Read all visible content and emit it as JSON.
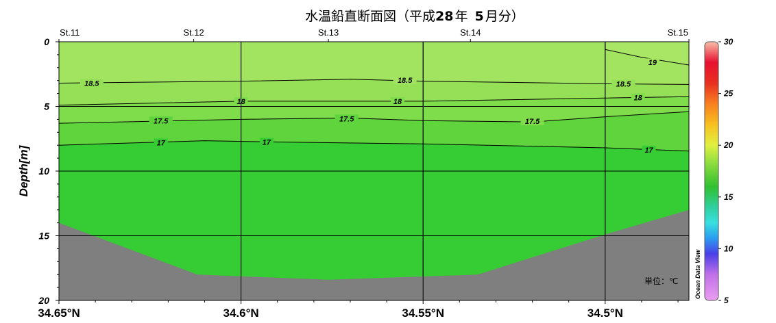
{
  "title": {
    "prefix": "水温鉛直断面図（平成",
    "year": "28",
    "mid": "年",
    "month": "5",
    "suffix": "月分）"
  },
  "unit_label": "単位：℃",
  "watermark": "Ocean Data View",
  "chart_data": {
    "type": "contour-section",
    "ylabel": "Depth[m]",
    "x_ticks": [
      {
        "value": 34.65,
        "label": "34.65°N"
      },
      {
        "value": 34.6,
        "label": "34.6°N"
      },
      {
        "value": 34.55,
        "label": "34.55°N"
      },
      {
        "value": 34.5,
        "label": "34.5°N"
      }
    ],
    "xlim": [
      34.65,
      34.477
    ],
    "ylim": [
      0,
      20
    ],
    "y_ticks": [
      0,
      5,
      10,
      15,
      20
    ],
    "stations": [
      {
        "name": "St.11",
        "lat": 34.65
      },
      {
        "name": "St.12",
        "lat": 34.613
      },
      {
        "name": "St.13",
        "lat": 34.576
      },
      {
        "name": "St.14",
        "lat": 34.537
      },
      {
        "name": "St.15",
        "lat": 34.477
      }
    ],
    "grid_lats": [
      34.6,
      34.55,
      34.5
    ],
    "grid_depths": [
      5,
      10,
      15
    ],
    "colorbar": {
      "min": 5,
      "max": 30,
      "ticks": [
        5,
        10,
        15,
        20,
        25,
        30
      ],
      "stops": [
        {
          "v": 5,
          "c": "#ea9ef0"
        },
        {
          "v": 7.5,
          "c": "#c070e8"
        },
        {
          "v": 9.5,
          "c": "#4a3fe8"
        },
        {
          "v": 11,
          "c": "#2a9cf0"
        },
        {
          "v": 12.5,
          "c": "#38e0e0"
        },
        {
          "v": 14,
          "c": "#30d0a0"
        },
        {
          "v": 16,
          "c": "#30c030"
        },
        {
          "v": 18.5,
          "c": "#98e040"
        },
        {
          "v": 20,
          "c": "#e0f040"
        },
        {
          "v": 22,
          "c": "#f8c020"
        },
        {
          "v": 24,
          "c": "#f88020"
        },
        {
          "v": 26,
          "c": "#e83020"
        },
        {
          "v": 28,
          "c": "#e81030"
        },
        {
          "v": 30,
          "c": "#f8c0a8"
        }
      ]
    },
    "seafloor": [
      {
        "lat": 34.65,
        "depth": 14
      },
      {
        "lat": 34.612,
        "depth": 18
      },
      {
        "lat": 34.576,
        "depth": 18.4
      },
      {
        "lat": 34.535,
        "depth": 18
      },
      {
        "lat": 34.5,
        "depth": 14.9
      },
      {
        "lat": 34.477,
        "depth": 13
      }
    ],
    "fill_bands": [
      {
        "above_isotherm": "19",
        "color": "#a9e665"
      },
      {
        "above_isotherm": "18.5",
        "color": "#a2e460"
      },
      {
        "above_isotherm": "18",
        "color": "#95e057"
      },
      {
        "above_isotherm": "17.5",
        "color": "#7fdc4b"
      },
      {
        "above_isotherm": "17",
        "color": "#5fd43d"
      },
      {
        "below_isotherm": "17",
        "color": "#36cc33"
      }
    ],
    "isotherms": [
      {
        "value": 19,
        "label": "19",
        "points": [
          {
            "lat": 34.5,
            "depth": 0
          },
          {
            "lat": 34.5,
            "depth": 0.6
          },
          {
            "lat": 34.49,
            "depth": 1.2
          },
          {
            "lat": 34.477,
            "depth": 1.8
          }
        ],
        "label_at": [
          {
            "lat": 34.487,
            "depth": 1.6
          }
        ]
      },
      {
        "value": 18.5,
        "label": "18.5",
        "points": [
          {
            "lat": 34.65,
            "depth": 3.2
          },
          {
            "lat": 34.6,
            "depth": 3.05
          },
          {
            "lat": 34.57,
            "depth": 2.9
          },
          {
            "lat": 34.55,
            "depth": 3.05
          },
          {
            "lat": 34.5,
            "depth": 3.25
          },
          {
            "lat": 34.477,
            "depth": 3.3
          }
        ],
        "label_at": [
          {
            "lat": 34.641,
            "depth": 3.2
          },
          {
            "lat": 34.555,
            "depth": 2.95
          },
          {
            "lat": 34.495,
            "depth": 3.25
          }
        ]
      },
      {
        "value": 18,
        "label": "18",
        "points": [
          {
            "lat": 34.65,
            "depth": 4.9
          },
          {
            "lat": 34.6,
            "depth": 4.6
          },
          {
            "lat": 34.55,
            "depth": 4.6
          },
          {
            "lat": 34.5,
            "depth": 4.35
          },
          {
            "lat": 34.477,
            "depth": 4.25
          }
        ],
        "label_at": [
          {
            "lat": 34.6,
            "depth": 4.6
          },
          {
            "lat": 34.557,
            "depth": 4.6
          },
          {
            "lat": 34.491,
            "depth": 4.3
          }
        ]
      },
      {
        "value": 17.5,
        "label": "17.5",
        "points": [
          {
            "lat": 34.65,
            "depth": 6.3
          },
          {
            "lat": 34.6,
            "depth": 6.0
          },
          {
            "lat": 34.57,
            "depth": 5.9
          },
          {
            "lat": 34.55,
            "depth": 6.1
          },
          {
            "lat": 34.52,
            "depth": 6.2
          },
          {
            "lat": 34.5,
            "depth": 5.8
          },
          {
            "lat": 34.477,
            "depth": 5.4
          }
        ],
        "label_at": [
          {
            "lat": 34.622,
            "depth": 6.1
          },
          {
            "lat": 34.571,
            "depth": 5.95
          },
          {
            "lat": 34.52,
            "depth": 6.15
          }
        ]
      },
      {
        "value": 17,
        "label": "17",
        "points": [
          {
            "lat": 34.65,
            "depth": 8.0
          },
          {
            "lat": 34.61,
            "depth": 7.65
          },
          {
            "lat": 34.59,
            "depth": 7.75
          },
          {
            "lat": 34.55,
            "depth": 7.9
          },
          {
            "lat": 34.5,
            "depth": 8.2
          },
          {
            "lat": 34.477,
            "depth": 8.45
          }
        ],
        "label_at": [
          {
            "lat": 34.622,
            "depth": 7.8
          },
          {
            "lat": 34.593,
            "depth": 7.75
          },
          {
            "lat": 34.488,
            "depth": 8.35
          }
        ]
      }
    ]
  }
}
